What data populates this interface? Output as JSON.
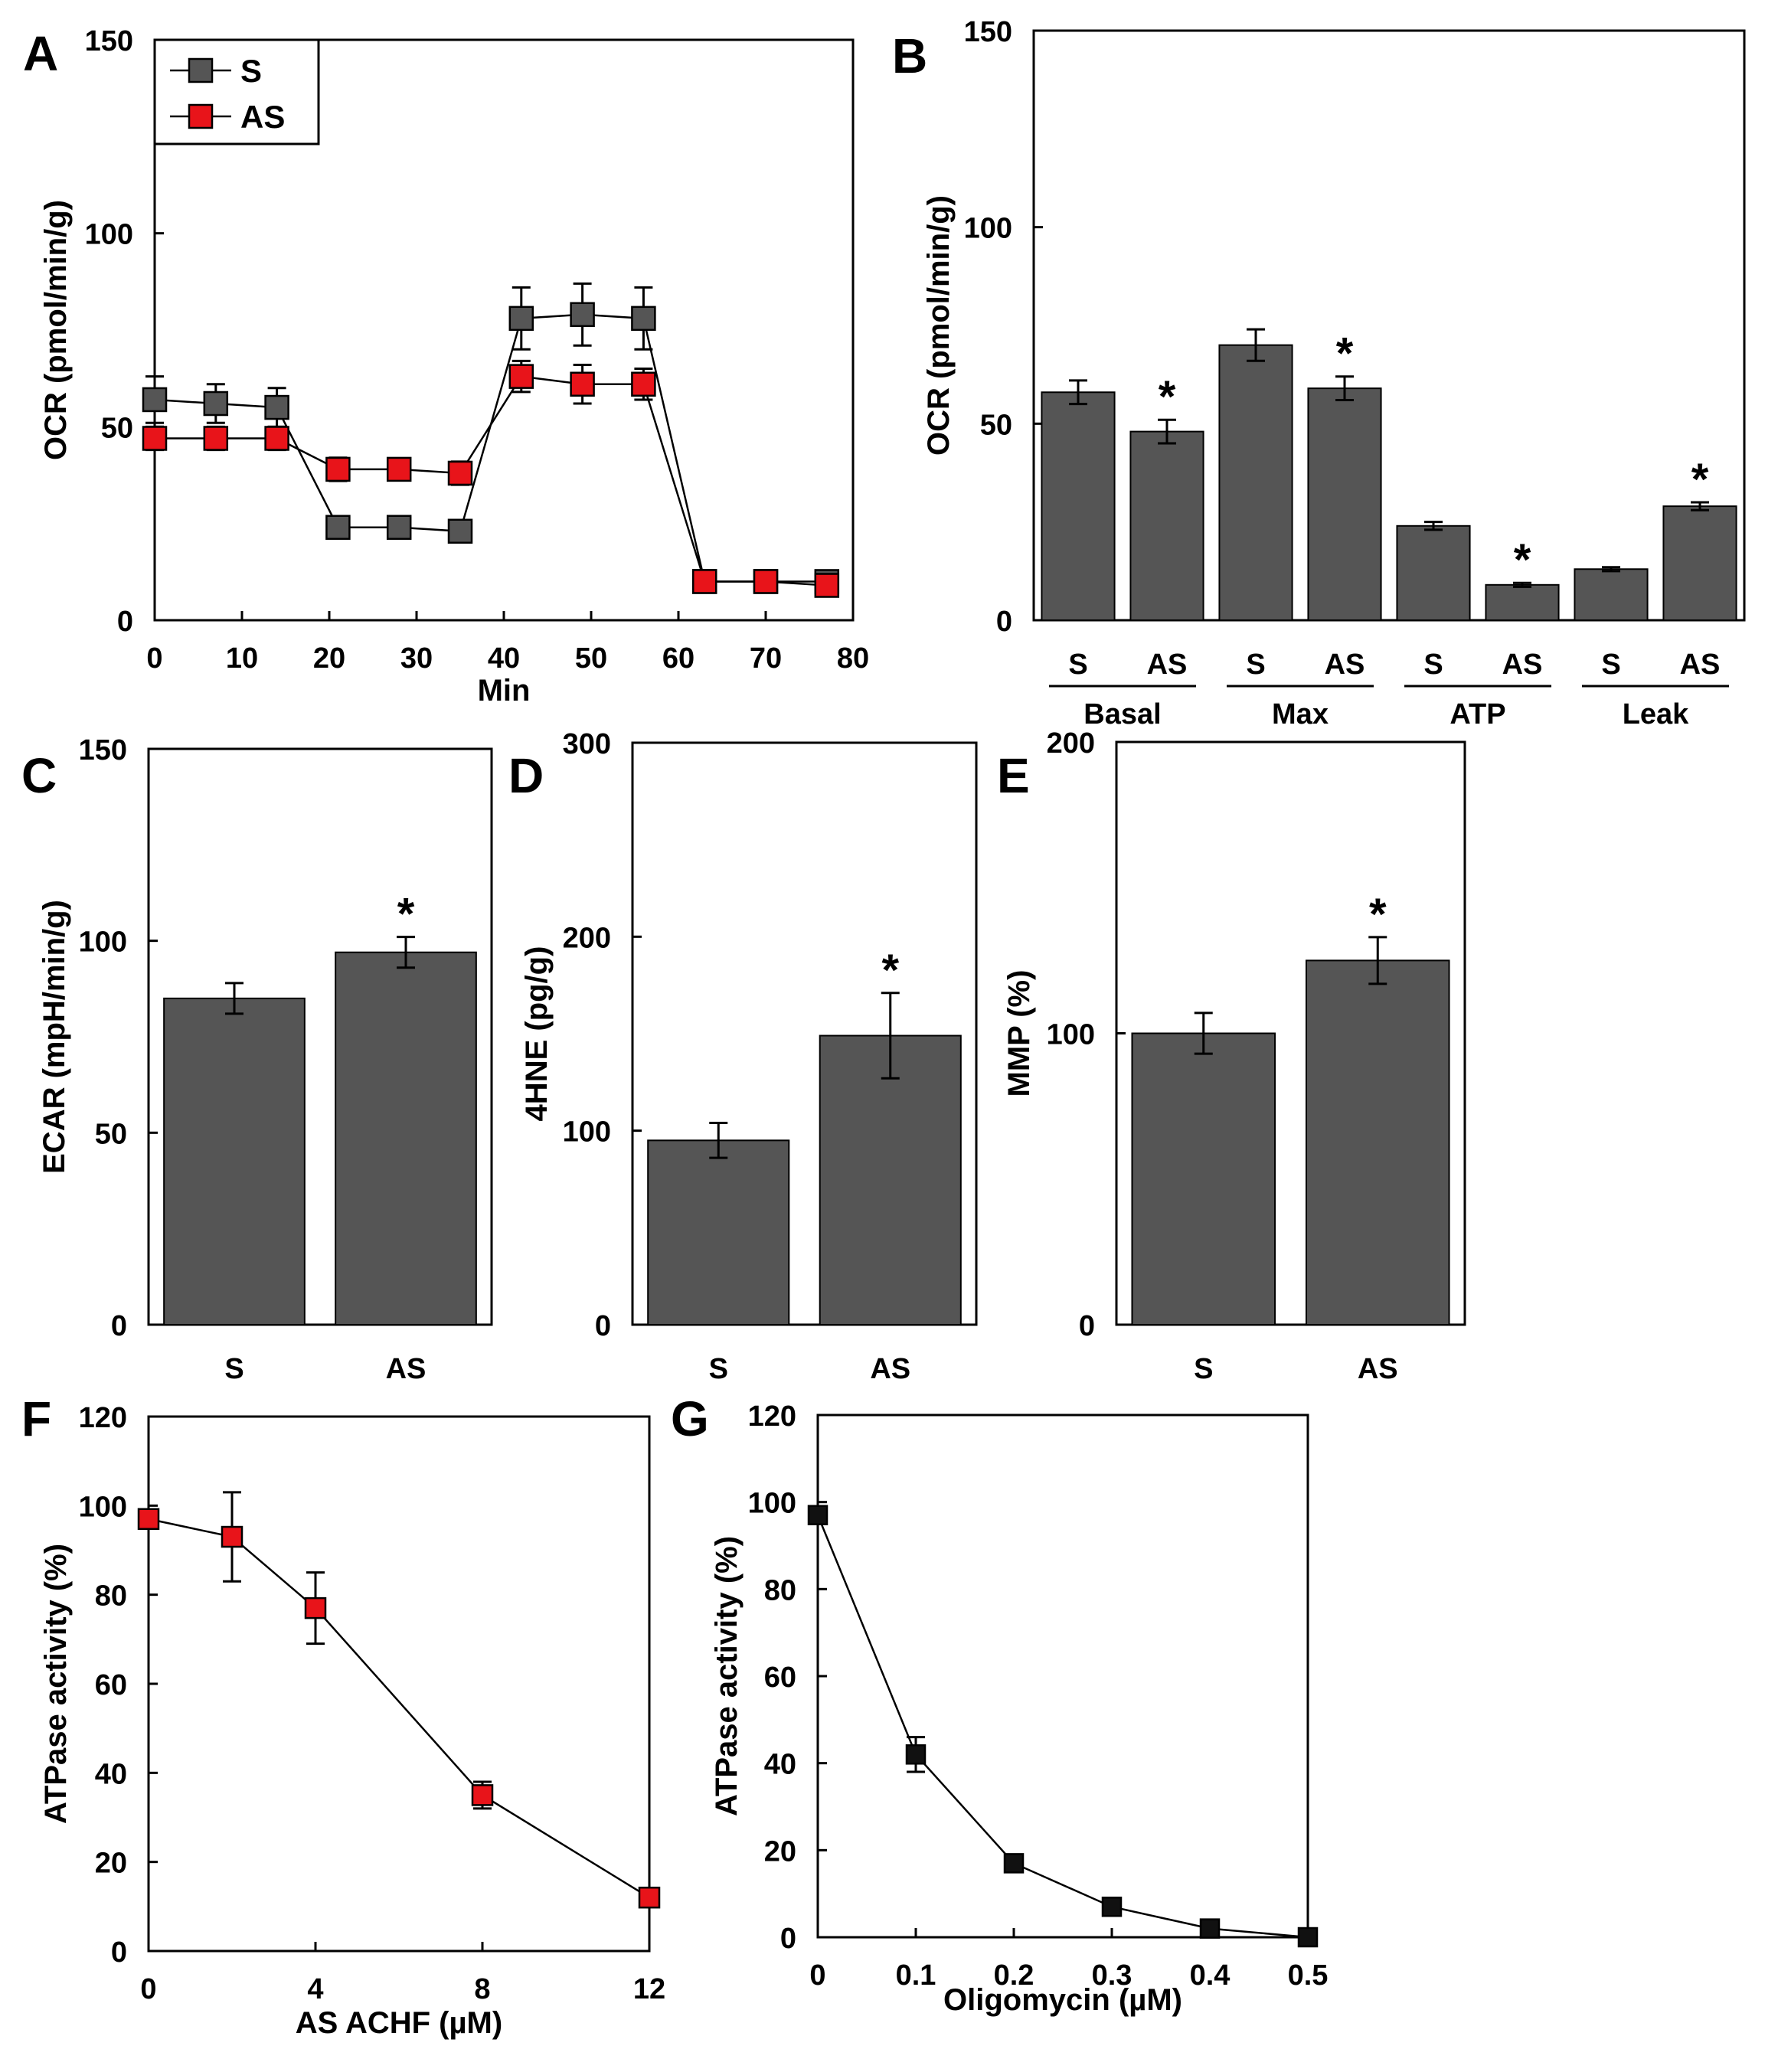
{
  "colors": {
    "bar": "#555555",
    "series_s": "#555555",
    "series_as": "#e8141a",
    "series_black": "#111111"
  },
  "chart_data": [
    {
      "panel": "A",
      "type": "line",
      "xlabel": "Min",
      "ylabel": "OCR (pmol/min/g)",
      "xlim": [
        0,
        80
      ],
      "ylim": [
        0,
        150
      ],
      "xticks": [
        0,
        10,
        20,
        30,
        40,
        50,
        60,
        70,
        80
      ],
      "yticks": [
        0,
        50,
        100,
        150
      ],
      "legend": "top-left",
      "series": [
        {
          "name": "S",
          "x": [
            0,
            7,
            14,
            21,
            28,
            35,
            42,
            49,
            56,
            63,
            70,
            77
          ],
          "values": [
            57,
            56,
            55,
            24,
            24,
            23,
            78,
            79,
            78,
            10,
            10,
            10
          ],
          "errors": [
            6,
            5,
            5,
            2,
            2,
            2,
            8,
            8,
            8,
            1,
            1,
            2
          ]
        },
        {
          "name": "AS",
          "x": [
            0,
            7,
            14,
            21,
            28,
            35,
            42,
            49,
            56,
            63,
            70,
            77
          ],
          "values": [
            47,
            47,
            47,
            39,
            39,
            38,
            63,
            61,
            61,
            10,
            10,
            9
          ],
          "errors": [
            3,
            3,
            3,
            3,
            2,
            3,
            4,
            5,
            4,
            1,
            1,
            2
          ]
        }
      ]
    },
    {
      "panel": "B",
      "type": "bar",
      "ylabel": "OCR (pmol/min/g)",
      "ylim": [
        0,
        150
      ],
      "yticks": [
        0,
        50,
        100,
        150
      ],
      "groups": [
        "Basal",
        "Max",
        "ATP",
        "Leak"
      ],
      "categories": [
        "S",
        "AS",
        "S",
        "AS",
        "S",
        "AS",
        "S",
        "AS"
      ],
      "values": [
        58,
        48,
        70,
        59,
        24,
        9,
        13,
        29
      ],
      "errors": [
        3,
        3,
        4,
        3,
        1,
        0.5,
        0.5,
        1
      ],
      "significance": [
        "",
        "*",
        "",
        "*",
        "",
        "*",
        "",
        "*"
      ]
    },
    {
      "panel": "C",
      "type": "bar",
      "ylabel": "ECAR (mpH/min/g)",
      "ylim": [
        0,
        150
      ],
      "yticks": [
        0,
        50,
        100,
        150
      ],
      "categories": [
        "S",
        "AS"
      ],
      "values": [
        85,
        97
      ],
      "errors": [
        4,
        4
      ],
      "significance": [
        "",
        "*"
      ]
    },
    {
      "panel": "D",
      "type": "bar",
      "ylabel": "4HNE (pg/g)",
      "ylim": [
        0,
        300
      ],
      "yticks": [
        0,
        100,
        200,
        300
      ],
      "categories": [
        "S",
        "AS"
      ],
      "values": [
        95,
        149
      ],
      "errors": [
        9,
        22
      ],
      "significance": [
        "",
        "*"
      ]
    },
    {
      "panel": "E",
      "type": "bar",
      "ylabel": "MMP (%)",
      "ylim": [
        0,
        200
      ],
      "yticks": [
        0,
        100,
        200
      ],
      "categories": [
        "S",
        "AS"
      ],
      "values": [
        100,
        125
      ],
      "errors": [
        7,
        8
      ],
      "significance": [
        "",
        "*"
      ]
    },
    {
      "panel": "F",
      "type": "line",
      "xlabel": "AS ACHF (µM)",
      "ylabel": "ATPase activity (%)",
      "xlim": [
        0,
        12
      ],
      "ylim": [
        0,
        120
      ],
      "xticks": [
        0,
        4,
        8,
        12
      ],
      "yticks": [
        0,
        20,
        40,
        60,
        80,
        100,
        120
      ],
      "series": [
        {
          "name": "AS ACHF",
          "x": [
            0,
            2,
            4,
            8,
            12
          ],
          "values": [
            97,
            93,
            77,
            35,
            12
          ],
          "errors": [
            0,
            10,
            8,
            3,
            0
          ]
        }
      ]
    },
    {
      "panel": "G",
      "type": "line",
      "xlabel": "Oligomycin (µM)",
      "ylabel": "ATPase activity (%)",
      "xlim": [
        0,
        0.5
      ],
      "ylim": [
        0,
        120
      ],
      "xticks": [
        0,
        0.1,
        0.2,
        0.3,
        0.4,
        0.5
      ],
      "yticks": [
        0,
        20,
        40,
        60,
        80,
        100,
        120
      ],
      "series": [
        {
          "name": "Oligomycin",
          "x": [
            0,
            0.1,
            0.2,
            0.3,
            0.4,
            0.5
          ],
          "values": [
            97,
            42,
            17,
            7,
            2,
            0
          ],
          "errors": [
            0,
            4,
            1,
            1,
            1,
            1
          ]
        }
      ]
    }
  ]
}
